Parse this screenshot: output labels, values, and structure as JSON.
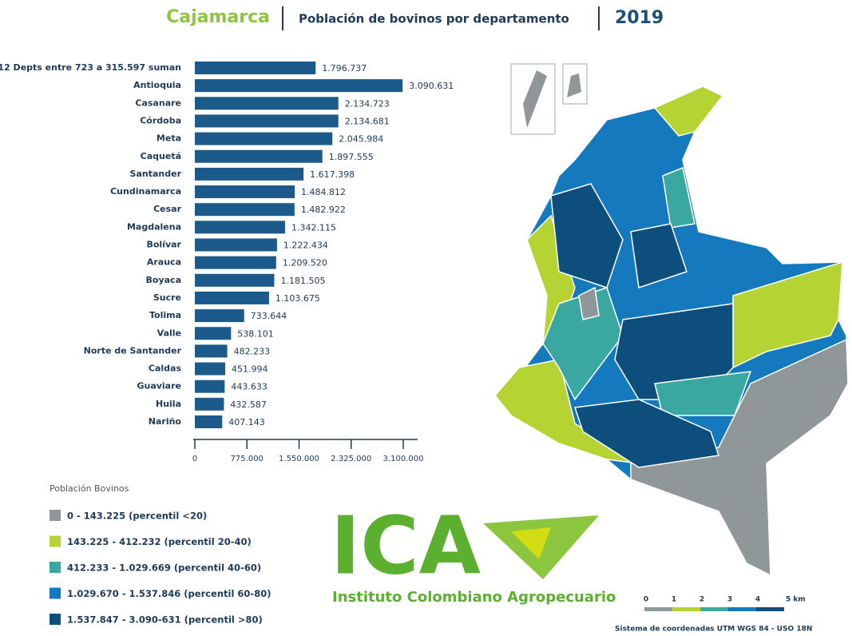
{
  "chart_data": {
    "type": "bar",
    "orientation": "horizontal",
    "title": "Cajamarca",
    "subtitle": "Población de bovinos por departamento",
    "year": "2019",
    "categories": [
      "12 Depts entre 723 a 315.597 suman",
      "Antioquia",
      "Casanare",
      "Córdoba",
      "Meta",
      "Caquetá",
      "Santander",
      "Cundinamarca",
      "Cesar",
      "Magdalena",
      "Bolívar",
      "Arauca",
      "Boyaca",
      "Sucre",
      "Tolima",
      "Valle",
      "Norte de Santander",
      "Caldas",
      "Guaviare",
      "Huila",
      "Nariño"
    ],
    "values": [
      1796737,
      3090631,
      2134723,
      2134681,
      2045984,
      1897555,
      1617398,
      1484812,
      1482922,
      1342115,
      1222434,
      1209520,
      1181505,
      1103675,
      733644,
      538101,
      482233,
      451994,
      443633,
      432587,
      407143
    ],
    "value_labels": [
      "1.796.737",
      "3.090.631",
      "2.134.723",
      "2.134.681",
      "2.045.984",
      "1.897.555",
      "1.617.398",
      "1.484.812",
      "1.482.922",
      "1.342.115",
      "1.222.434",
      "1.209.520",
      "1.181.505",
      "1.103.675",
      "733.644",
      "538.101",
      "482.233",
      "451.994",
      "443.633",
      "432.587",
      "407.143"
    ],
    "color": "#1b5a8a",
    "xlim": [
      0,
      3100000
    ],
    "xticks": [
      0,
      {
        "value": 775000,
        "label": "775.000"
      },
      {
        "value": 1550000,
        "label": "1.550.000"
      },
      {
        "value": 2325000,
        "label": "2.325.000"
      },
      {
        "value": 3100000,
        "label": "3.100.000"
      }
    ]
  },
  "legend": {
    "title": "Población Bovinos",
    "items": [
      {
        "label": "0 - 143.225 (percentil <20)",
        "color": "#8f9799"
      },
      {
        "label": "143.225 - 412.232 (percentil 20-40)",
        "color": "#b6d334"
      },
      {
        "label": "412.233 - 1.029.669 (percentil 40-60)",
        "color": "#3aa8a0"
      },
      {
        "label": "1.029.670 - 1.537.846 (percentil 60-80)",
        "color": "#1579bd"
      },
      {
        "label": "1.537.847 - 3.090-631 (percentil >80)",
        "color": "#0d4e7c"
      }
    ]
  },
  "logo": {
    "name": "ICA",
    "subtitle": "Instituto Colombiano Agropecuario"
  },
  "scale": {
    "labels": [
      "0",
      "1",
      "2",
      "3",
      "4",
      "5 km"
    ]
  },
  "footnote": "Sistema de coordenadas UTM WGS 84 - USO 18N"
}
